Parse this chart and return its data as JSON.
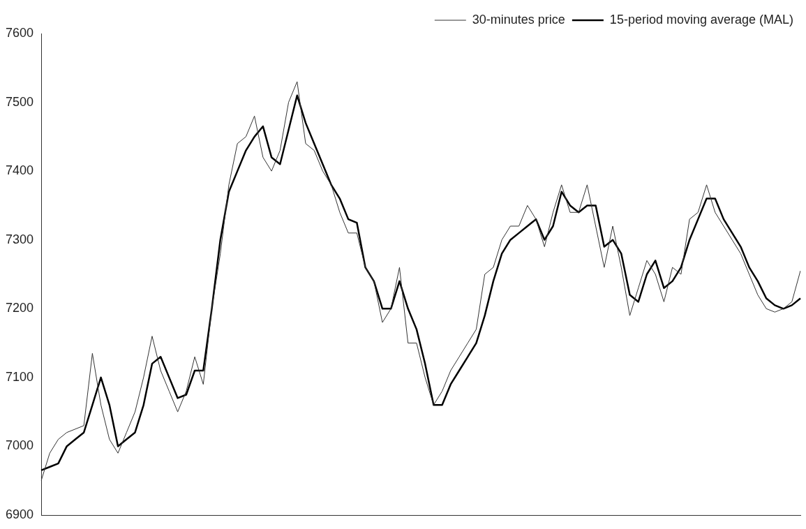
{
  "chart_data": {
    "type": "line",
    "categories": [
      null,
      null,
      null,
      null,
      null,
      null,
      null,
      null,
      null,
      null,
      null,
      null,
      null,
      null,
      null,
      null,
      null,
      null,
      null,
      null,
      null,
      null,
      null,
      null,
      null,
      null,
      null,
      null,
      null,
      null,
      null,
      null,
      null,
      null,
      null,
      null,
      null,
      null,
      null,
      null,
      null,
      null,
      null,
      null,
      null,
      null,
      null,
      null,
      null,
      null,
      null,
      null,
      null,
      null,
      null,
      null,
      null,
      null,
      null,
      null,
      null,
      null,
      null,
      null,
      null,
      null,
      null,
      null,
      null,
      null,
      null,
      null,
      null,
      null,
      null,
      null,
      null,
      null,
      null,
      null,
      null,
      null,
      null,
      null,
      null,
      null,
      null,
      null,
      null,
      null
    ],
    "series": [
      {
        "name": "30-minutes price",
        "color": "#333333",
        "values": [
          6950,
          6990,
          7010,
          7020,
          7025,
          7030,
          7135,
          7060,
          7010,
          6990,
          7020,
          7050,
          7100,
          7160,
          7110,
          7080,
          7050,
          7080,
          7130,
          7090,
          7200,
          7280,
          7380,
          7440,
          7450,
          7480,
          7420,
          7400,
          7430,
          7500,
          7530,
          7440,
          7430,
          7400,
          7380,
          7340,
          7310,
          7310,
          7260,
          7240,
          7180,
          7200,
          7260,
          7150,
          7150,
          7100,
          7060,
          7080,
          7110,
          7130,
          7150,
          7170,
          7250,
          7260,
          7300,
          7320,
          7320,
          7350,
          7330,
          7290,
          7340,
          7380,
          7340,
          7340,
          7380,
          7320,
          7260,
          7320,
          7260,
          7190,
          7230,
          7270,
          7250,
          7210,
          7260,
          7250,
          7330,
          7340,
          7380,
          7340,
          7320,
          7300,
          7280,
          7250,
          7220,
          7200,
          7195,
          7200,
          7210,
          7255
        ]
      },
      {
        "name": "15-period moving average (MAL)",
        "color": "#000000",
        "values": [
          6965,
          6970,
          6975,
          7000,
          7010,
          7020,
          7060,
          7100,
          7060,
          7000,
          7010,
          7020,
          7060,
          7120,
          7130,
          7100,
          7070,
          7075,
          7110,
          7110,
          7200,
          7300,
          7370,
          7400,
          7430,
          7450,
          7465,
          7420,
          7410,
          7460,
          7510,
          7470,
          7440,
          7410,
          7380,
          7360,
          7330,
          7325,
          7260,
          7240,
          7200,
          7200,
          7240,
          7200,
          7170,
          7120,
          7060,
          7060,
          7090,
          7110,
          7130,
          7150,
          7190,
          7240,
          7280,
          7300,
          7310,
          7320,
          7330,
          7300,
          7320,
          7370,
          7350,
          7340,
          7350,
          7350,
          7290,
          7300,
          7280,
          7220,
          7210,
          7250,
          7270,
          7230,
          7240,
          7260,
          7300,
          7330,
          7360,
          7360,
          7330,
          7310,
          7290,
          7260,
          7240,
          7215,
          7205,
          7200,
          7205,
          7215
        ]
      }
    ],
    "ylim": [
      6900,
      7600
    ],
    "yticks": [
      6900,
      7000,
      7100,
      7200,
      7300,
      7400,
      7500,
      7600
    ],
    "grid": false,
    "legend": "top right",
    "marker": "none",
    "line_style": "solid",
    "tick_labels": "y"
  }
}
